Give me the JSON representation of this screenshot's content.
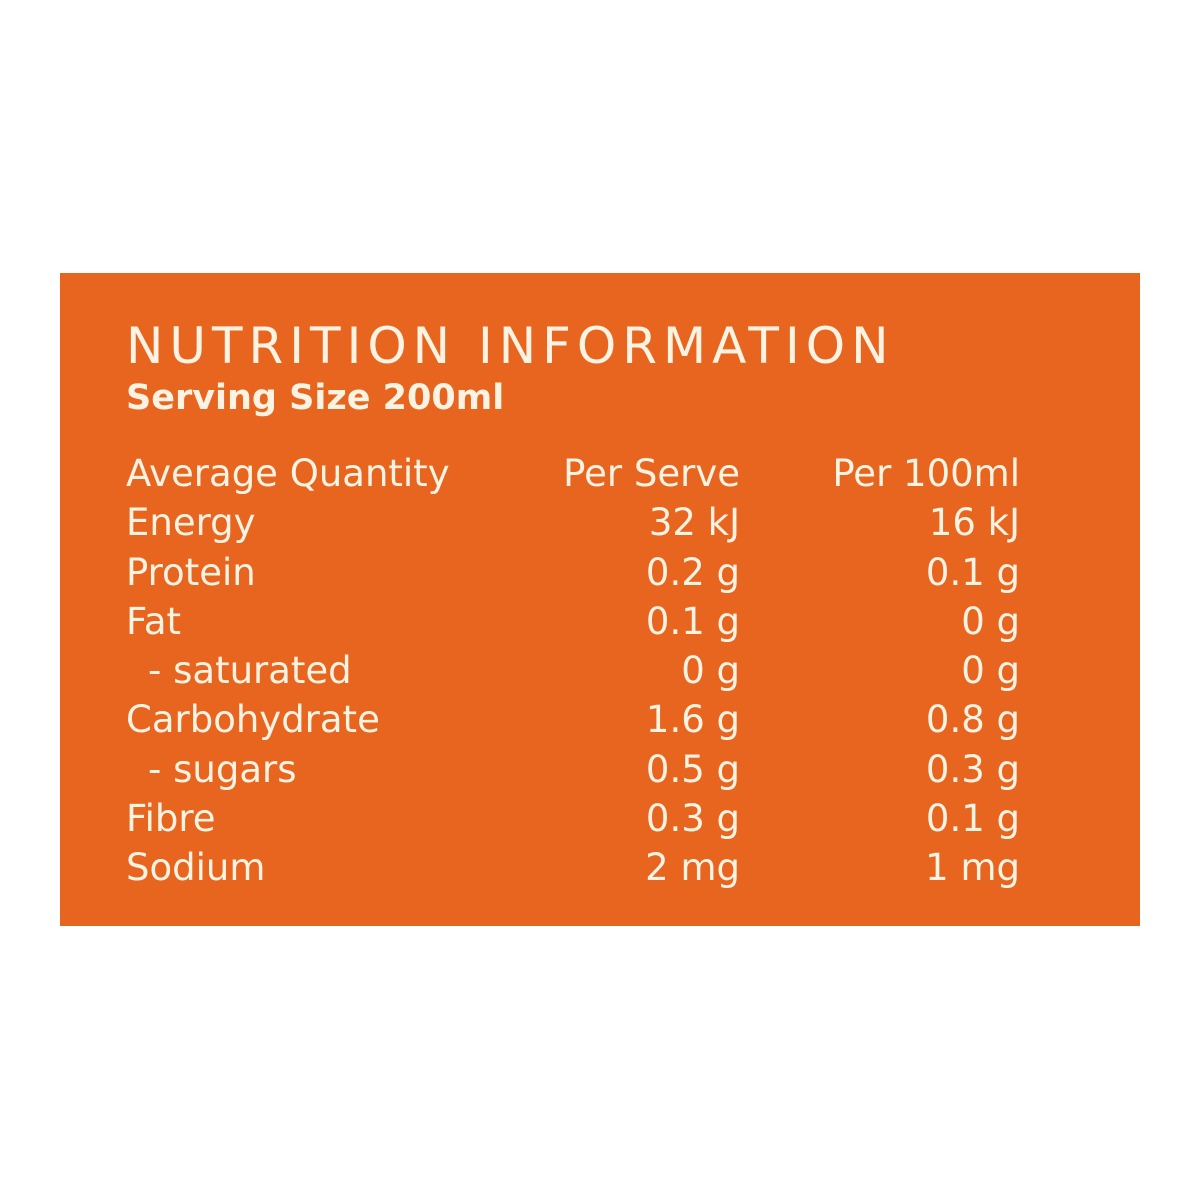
{
  "panel": {
    "background": "#E8651F",
    "text_color": "#FDF3E3"
  },
  "title": "NUTRITION INFORMATION",
  "serving_size": "Serving Size 200ml",
  "header": [
    "Average Quantity",
    "Per Serve",
    "Per 100ml"
  ],
  "rows": [
    [
      "Energy",
      "32 kJ",
      "16 kJ"
    ],
    [
      "Protein",
      "0.2 g",
      "0.1 g"
    ],
    [
      "Fat",
      "0.1 g",
      "0 g"
    ],
    [
      "- saturated",
      "0 g",
      "0 g"
    ],
    [
      "Carbohydrate",
      "1.6 g",
      "0.8 g"
    ],
    [
      "- sugars",
      "0.5 g",
      "0.3 g"
    ],
    [
      "Fibre",
      "0.3 g",
      "0.1 g"
    ],
    [
      "Sodium",
      "2 mg",
      "1 mg"
    ]
  ]
}
